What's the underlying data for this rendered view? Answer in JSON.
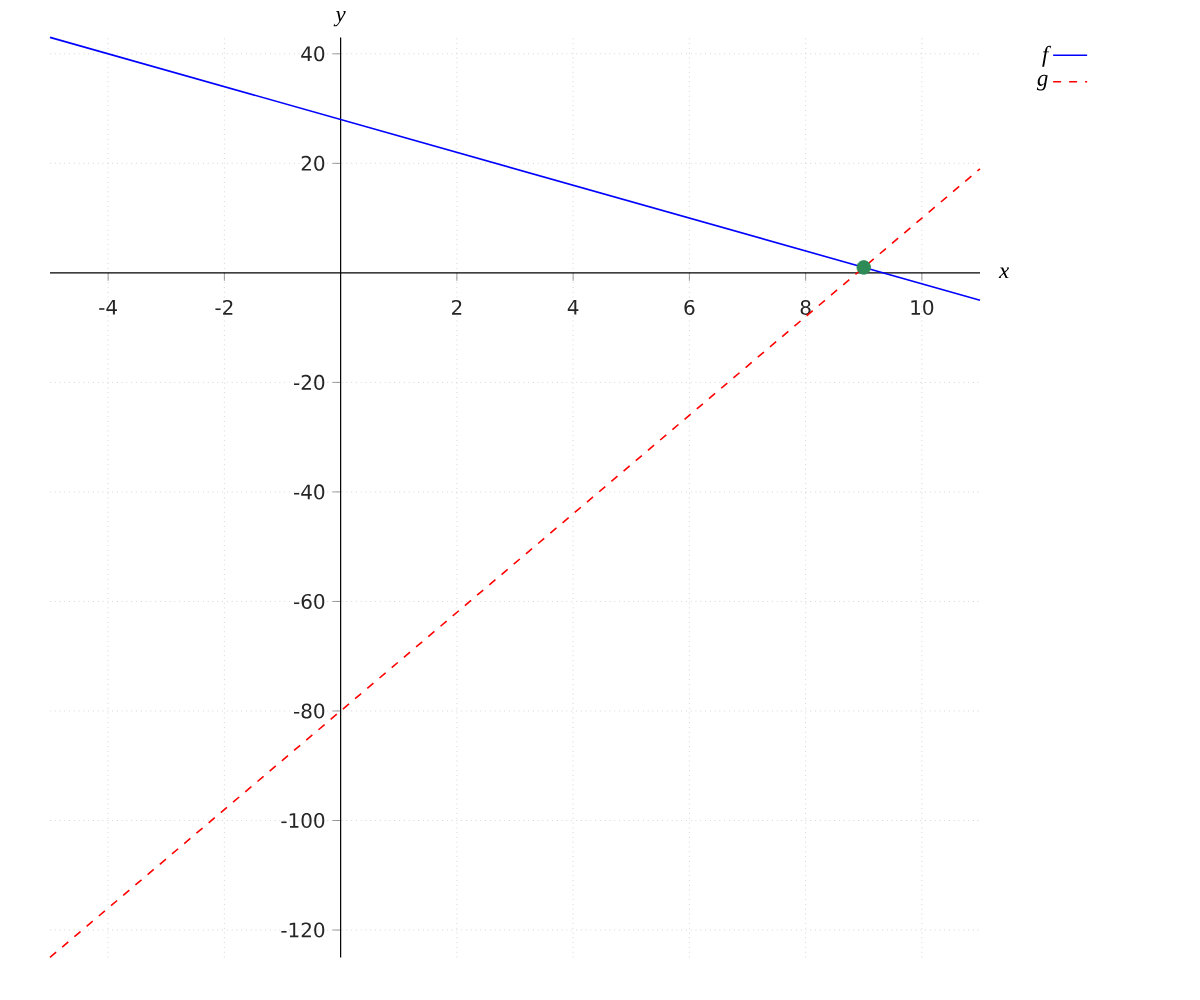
{
  "chart_data": {
    "type": "line",
    "xlabel": "x",
    "ylabel": "y",
    "x": [
      -5,
      11
    ],
    "series": [
      {
        "name": "f",
        "color": "#0000ff",
        "values": [
          43,
          -5
        ],
        "line_style": "solid"
      },
      {
        "name": "g",
        "color": "#ff0000",
        "values": [
          -125,
          19
        ],
        "line_style": "dashed"
      },
      {
        "type": "scatter",
        "x": [
          9
        ],
        "values": [
          1
        ],
        "color": "#2e8b57",
        "marker": "circle"
      }
    ],
    "xlim": [
      -5,
      11
    ],
    "ylim": [
      -125,
      43
    ],
    "xticks": [
      -4,
      -2,
      2,
      4,
      6,
      8,
      10
    ],
    "yticks": [
      -120,
      -100,
      -80,
      -60,
      -40,
      -20,
      20,
      40
    ],
    "grid": true,
    "legend": "top right"
  }
}
